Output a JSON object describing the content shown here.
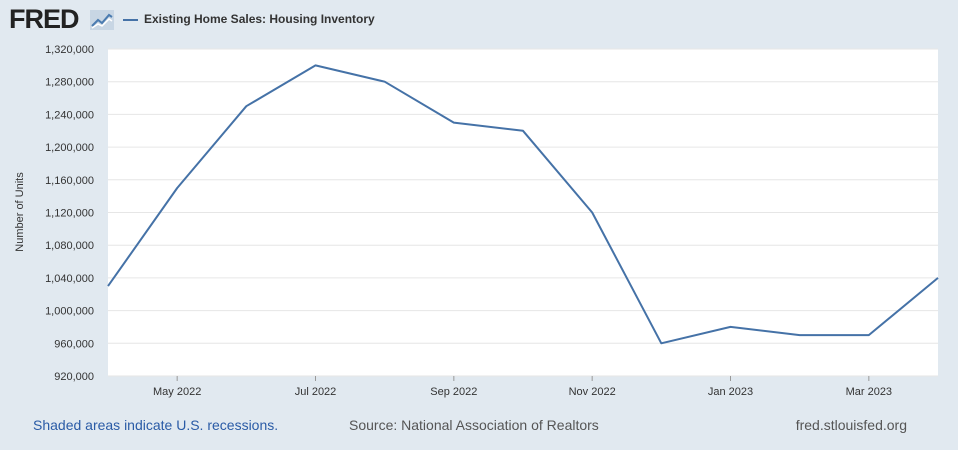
{
  "header": {
    "logo_text": "FRED",
    "logo_icon": "chart-line-icon",
    "legend_label": "Existing Home Sales: Housing Inventory",
    "series_color": "#4572a7"
  },
  "chart_data": {
    "type": "line",
    "x": [
      "2022-04",
      "2022-05",
      "2022-06",
      "2022-07",
      "2022-08",
      "2022-09",
      "2022-10",
      "2022-11",
      "2022-12",
      "2023-01",
      "2023-02",
      "2023-03",
      "2023-04"
    ],
    "series": [
      {
        "name": "Existing Home Sales: Housing Inventory",
        "values": [
          1030000,
          1150000,
          1250000,
          1300000,
          1280000,
          1230000,
          1220000,
          1120000,
          960000,
          980000,
          970000,
          970000,
          1040000
        ]
      }
    ],
    "ylabel": "Number of Units",
    "ylim": [
      920000,
      1320000
    ],
    "y_ticks": [
      "920,000",
      "960,000",
      "1,000,000",
      "1,040,000",
      "1,080,000",
      "1,120,000",
      "1,160,000",
      "1,200,000",
      "1,240,000",
      "1,280,000",
      "1,320,000"
    ],
    "x_ticks": [
      {
        "at": "2022-05",
        "label": "May 2022"
      },
      {
        "at": "2022-07",
        "label": "Jul 2022"
      },
      {
        "at": "2022-09",
        "label": "Sep 2022"
      },
      {
        "at": "2022-11",
        "label": "Nov 2022"
      },
      {
        "at": "2023-01",
        "label": "Jan 2023"
      },
      {
        "at": "2023-03",
        "label": "Mar 2023"
      }
    ],
    "grid": true,
    "legend_position": "top-left"
  },
  "footer": {
    "recession_note": "Shaded areas indicate U.S. recessions.",
    "source": "Source: National Association of Realtors",
    "site": "fred.stlouisfed.org"
  }
}
